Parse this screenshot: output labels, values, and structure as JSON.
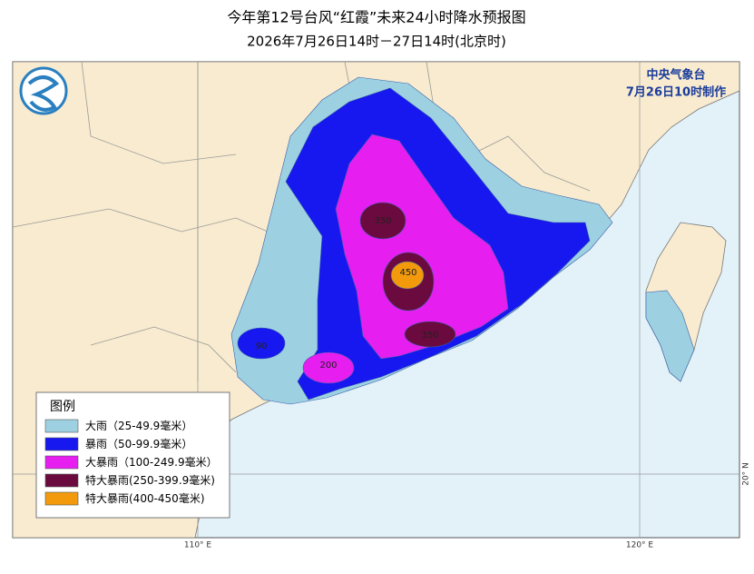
{
  "title": "今年第12号台风“红霞”未来24小时降水预报图",
  "subtitle": "2026年7月26日14时－27日14时(北京时)",
  "agency": "中央气象台",
  "issued": "7月26日10时制作",
  "legend": {
    "title": "图例",
    "items": [
      {
        "label": "大雨（25-49.9毫米）",
        "color": "#9dd1e2"
      },
      {
        "label": "暴雨（50-99.9毫米）",
        "color": "#1717f0"
      },
      {
        "label": "大暴雨（100-249.9毫米）",
        "color": "#e61ef0"
      },
      {
        "label": "特大暴雨(250-399.9毫米)",
        "color": "#6b0a3e"
      },
      {
        "label": "特大暴雨(400-450毫米)",
        "color": "#f29a0c"
      }
    ]
  },
  "map_labels": [
    "350",
    "450",
    "350",
    "200",
    "90"
  ],
  "graticule": [
    "110° E",
    "120° E",
    "20° N"
  ]
}
